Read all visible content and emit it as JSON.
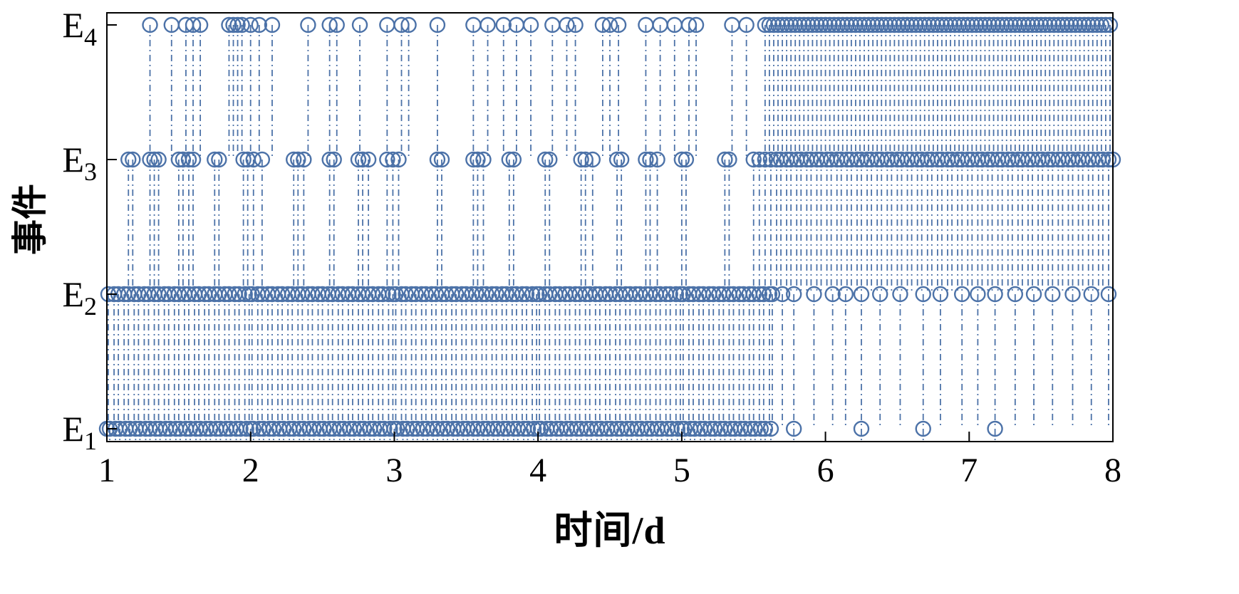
{
  "chart_data": {
    "type": "scatter",
    "subtype": "event-stem-raster",
    "title": "",
    "xlabel": "时间/d",
    "ylabel": "事件",
    "xlim": [
      1,
      8
    ],
    "x_ticks": [
      1,
      2,
      3,
      4,
      5,
      6,
      7,
      8
    ],
    "categories": [
      "E1",
      "E2",
      "E3",
      "E4"
    ],
    "category_labels": [
      {
        "base": "E",
        "sub": "1"
      },
      {
        "base": "E",
        "sub": "2"
      },
      {
        "base": "E",
        "sub": "3"
      },
      {
        "base": "E",
        "sub": "4"
      }
    ],
    "color": "#4c72a8",
    "line_style": "dash-dot",
    "marker": "open-circle",
    "layout": {
      "grid": false,
      "legend": "none",
      "frame": "box"
    },
    "series": [
      {
        "name": "E1",
        "level": 1,
        "times": [
          1.0,
          1.02,
          1.06,
          1.09,
          1.13,
          1.16,
          1.2,
          1.23,
          1.27,
          1.3,
          1.34,
          1.37,
          1.41,
          1.44,
          1.48,
          1.51,
          1.55,
          1.58,
          1.62,
          1.65,
          1.69,
          1.72,
          1.76,
          1.79,
          1.83,
          1.86,
          1.9,
          1.93,
          1.97,
          2.0,
          2.02,
          2.06,
          2.09,
          2.13,
          2.16,
          2.2,
          2.23,
          2.27,
          2.3,
          2.34,
          2.37,
          2.41,
          2.44,
          2.48,
          2.51,
          2.55,
          2.58,
          2.62,
          2.65,
          2.69,
          2.72,
          2.76,
          2.79,
          2.83,
          2.86,
          2.9,
          2.93,
          2.97,
          3.0,
          3.02,
          3.06,
          3.09,
          3.13,
          3.16,
          3.2,
          3.23,
          3.27,
          3.3,
          3.34,
          3.37,
          3.41,
          3.44,
          3.48,
          3.51,
          3.55,
          3.58,
          3.62,
          3.65,
          3.69,
          3.72,
          3.76,
          3.79,
          3.83,
          3.86,
          3.9,
          3.93,
          3.97,
          4.0,
          4.02,
          4.06,
          4.09,
          4.13,
          4.16,
          4.2,
          4.23,
          4.27,
          4.3,
          4.34,
          4.37,
          4.41,
          4.44,
          4.48,
          4.51,
          4.55,
          4.58,
          4.62,
          4.65,
          4.69,
          4.72,
          4.76,
          4.79,
          4.83,
          4.86,
          4.9,
          4.93,
          4.97,
          5.0,
          5.02,
          5.06,
          5.09,
          5.13,
          5.16,
          5.2,
          5.23,
          5.27,
          5.3,
          5.34,
          5.37,
          5.41,
          5.44,
          5.48,
          5.51,
          5.55,
          5.58,
          5.62,
          5.78,
          6.25,
          6.68,
          7.18
        ]
      },
      {
        "name": "E2",
        "level": 2,
        "times": [
          1.01,
          1.05,
          1.08,
          1.12,
          1.15,
          1.19,
          1.22,
          1.26,
          1.29,
          1.33,
          1.36,
          1.4,
          1.43,
          1.47,
          1.5,
          1.54,
          1.57,
          1.61,
          1.64,
          1.68,
          1.71,
          1.75,
          1.78,
          1.82,
          1.85,
          1.89,
          1.92,
          1.96,
          1.99,
          2.01,
          2.05,
          2.08,
          2.12,
          2.15,
          2.19,
          2.22,
          2.26,
          2.29,
          2.33,
          2.36,
          2.4,
          2.43,
          2.47,
          2.5,
          2.54,
          2.57,
          2.61,
          2.64,
          2.68,
          2.71,
          2.75,
          2.78,
          2.82,
          2.85,
          2.89,
          2.92,
          2.96,
          2.99,
          3.01,
          3.05,
          3.08,
          3.12,
          3.15,
          3.19,
          3.22,
          3.26,
          3.29,
          3.33,
          3.36,
          3.4,
          3.43,
          3.47,
          3.5,
          3.54,
          3.57,
          3.61,
          3.64,
          3.68,
          3.71,
          3.75,
          3.78,
          3.82,
          3.85,
          3.89,
          3.92,
          3.96,
          3.99,
          4.01,
          4.05,
          4.08,
          4.12,
          4.15,
          4.19,
          4.22,
          4.26,
          4.29,
          4.33,
          4.36,
          4.4,
          4.43,
          4.47,
          4.5,
          4.54,
          4.57,
          4.61,
          4.64,
          4.68,
          4.71,
          4.75,
          4.78,
          4.82,
          4.85,
          4.89,
          4.92,
          4.96,
          4.99,
          5.01,
          5.05,
          5.08,
          5.12,
          5.15,
          5.19,
          5.22,
          5.26,
          5.29,
          5.33,
          5.36,
          5.4,
          5.43,
          5.47,
          5.5,
          5.54,
          5.57,
          5.61,
          5.63,
          5.7,
          5.78,
          5.92,
          6.05,
          6.14,
          6.25,
          6.38,
          6.52,
          6.68,
          6.8,
          6.95,
          7.06,
          7.18,
          7.32,
          7.45,
          7.58,
          7.72,
          7.85,
          7.97
        ]
      },
      {
        "name": "E3",
        "level": 3,
        "times": [
          1.15,
          1.18,
          1.3,
          1.33,
          1.36,
          1.5,
          1.53,
          1.57,
          1.6,
          1.75,
          1.78,
          1.95,
          1.98,
          2.02,
          2.08,
          2.3,
          2.33,
          2.37,
          2.55,
          2.58,
          2.75,
          2.78,
          2.82,
          2.95,
          2.99,
          3.03,
          3.3,
          3.33,
          3.55,
          3.58,
          3.62,
          3.8,
          3.83,
          4.05,
          4.08,
          4.3,
          4.33,
          4.38,
          4.55,
          4.58,
          4.75,
          4.78,
          4.83,
          5.0,
          5.03,
          5.3,
          5.33,
          5.5,
          5.54,
          5.58,
          5.62,
          5.66,
          5.69,
          5.73,
          5.76,
          5.8,
          5.83,
          5.87,
          5.9,
          5.94,
          5.97,
          6.01,
          6.04,
          6.08,
          6.11,
          6.15,
          6.18,
          6.22,
          6.25,
          6.29,
          6.32,
          6.36,
          6.39,
          6.43,
          6.46,
          6.5,
          6.53,
          6.57,
          6.6,
          6.64,
          6.67,
          6.71,
          6.74,
          6.78,
          6.81,
          6.85,
          6.88,
          6.92,
          6.95,
          6.99,
          7.02,
          7.06,
          7.09,
          7.13,
          7.16,
          7.2,
          7.23,
          7.27,
          7.3,
          7.34,
          7.37,
          7.41,
          7.44,
          7.48,
          7.51,
          7.55,
          7.58,
          7.62,
          7.65,
          7.69,
          7.72,
          7.76,
          7.79,
          7.83,
          7.86,
          7.9,
          7.93,
          7.97,
          8.0
        ]
      },
      {
        "name": "E4",
        "level": 4,
        "times": [
          1.3,
          1.45,
          1.55,
          1.6,
          1.65,
          1.85,
          1.88,
          1.91,
          1.94,
          2.0,
          2.06,
          2.15,
          2.4,
          2.55,
          2.6,
          2.76,
          2.95,
          3.05,
          3.1,
          3.3,
          3.55,
          3.65,
          3.76,
          3.85,
          3.95,
          4.1,
          4.2,
          4.26,
          4.45,
          4.5,
          4.56,
          4.75,
          4.85,
          4.95,
          5.05,
          5.1,
          5.35,
          5.45,
          5.58,
          5.61,
          5.64,
          5.67,
          5.7,
          5.73,
          5.76,
          5.79,
          5.82,
          5.85,
          5.88,
          5.91,
          5.94,
          5.97,
          6.0,
          6.03,
          6.06,
          6.09,
          6.12,
          6.15,
          6.18,
          6.21,
          6.24,
          6.27,
          6.3,
          6.33,
          6.36,
          6.39,
          6.42,
          6.45,
          6.48,
          6.51,
          6.54,
          6.57,
          6.6,
          6.63,
          6.66,
          6.69,
          6.72,
          6.75,
          6.78,
          6.81,
          6.84,
          6.87,
          6.9,
          6.93,
          6.96,
          6.99,
          7.02,
          7.05,
          7.08,
          7.11,
          7.14,
          7.17,
          7.2,
          7.23,
          7.26,
          7.29,
          7.32,
          7.35,
          7.38,
          7.41,
          7.44,
          7.47,
          7.5,
          7.53,
          7.56,
          7.59,
          7.62,
          7.65,
          7.68,
          7.71,
          7.74,
          7.77,
          7.8,
          7.83,
          7.86,
          7.89,
          7.92,
          7.95,
          7.98
        ]
      }
    ]
  }
}
